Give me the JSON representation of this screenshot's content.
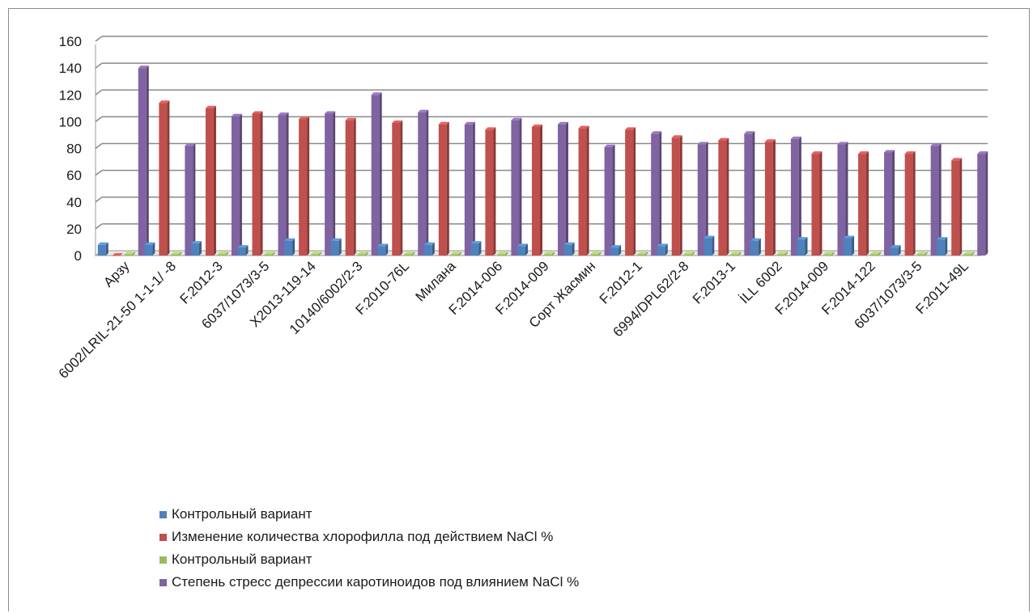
{
  "chart_data": {
    "type": "bar",
    "categories": [
      "Арзу",
      "6002/LRIL-21-50 1-1-1/ -8",
      "F.2012-3",
      "6037/1073/3-5",
      "X2013-119-14",
      "10140/6002/2-3",
      "F.2010-76L",
      "Милана",
      "F.2014-006",
      "F.2014-009",
      "Сорт Жасмин",
      "F.2012-1",
      "6994/DPL62/2-8",
      "F.2013-1",
      "İLL 6002",
      "F.2014-009",
      "F.2014-122",
      "6037/1073/3-5",
      "F.2011-49L"
    ],
    "series": [
      {
        "name": "Контрольный вариант",
        "color": "#4f81bd",
        "values": [
          8,
          8,
          9,
          6,
          11,
          11,
          7,
          8,
          9,
          7,
          8,
          6,
          7,
          13,
          11,
          12,
          13,
          6,
          12
        ]
      },
      {
        "name": "Изменение  количества хлорофилла под действием NaCl %",
        "color": "#c0504d",
        "values": [
          0,
          114,
          110,
          106,
          102,
          101,
          99,
          98,
          94,
          96,
          95,
          94,
          88,
          86,
          85,
          76,
          76,
          76,
          71
        ]
      },
      {
        "name": "Контрольный вариант",
        "color": "#9bbb59",
        "values": [
          1,
          1,
          1,
          1,
          1,
          1,
          1,
          1,
          1,
          1,
          1,
          1,
          1,
          1,
          1,
          1,
          1,
          1,
          1
        ]
      },
      {
        "name": "Степень стресс депрессии каротиноидов под влиянием NaCl %",
        "color": "#8064a2",
        "values": [
          140,
          82,
          104,
          105,
          106,
          120,
          107,
          98,
          101,
          98,
          81,
          91,
          83,
          91,
          87,
          83,
          77,
          82,
          76
        ]
      }
    ],
    "yticks": [
      "0",
      "20",
      "40",
      "60",
      "80",
      "100",
      "120",
      "140",
      "160"
    ],
    "ylim": [
      0,
      160
    ],
    "grid": true,
    "legend_position": "bottom-left"
  }
}
